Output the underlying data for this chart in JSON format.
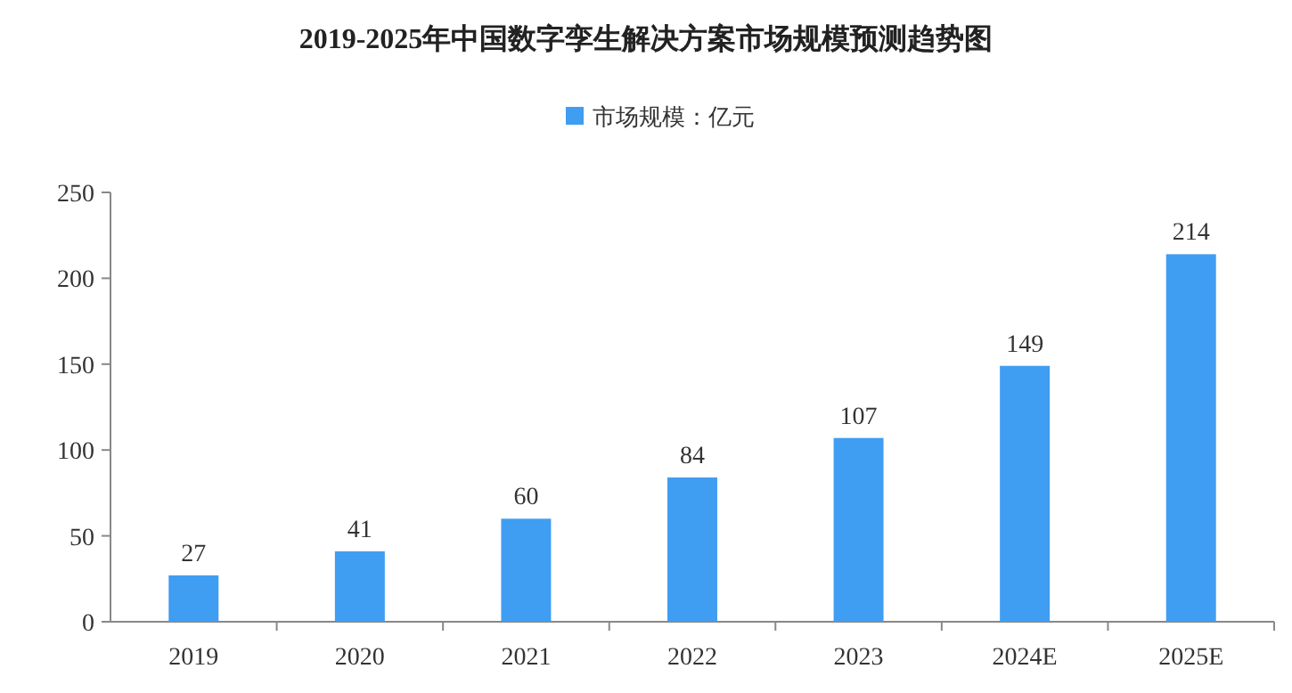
{
  "chart_data": {
    "type": "bar",
    "title": "2019-2025年中国数字孪生解决方案市场规模预测趋势图",
    "categories": [
      "2019",
      "2020",
      "2021",
      "2022",
      "2023",
      "2024E",
      "2025E"
    ],
    "series": [
      {
        "name": "市场规模：亿元",
        "color": "#3f9df2",
        "values": [
          27,
          41,
          60,
          84,
          107,
          149,
          214
        ]
      }
    ],
    "ylim": [
      0,
      250
    ],
    "yticks": [
      0,
      50,
      100,
      150,
      200,
      250
    ],
    "data_labels": true,
    "legend": "top"
  }
}
